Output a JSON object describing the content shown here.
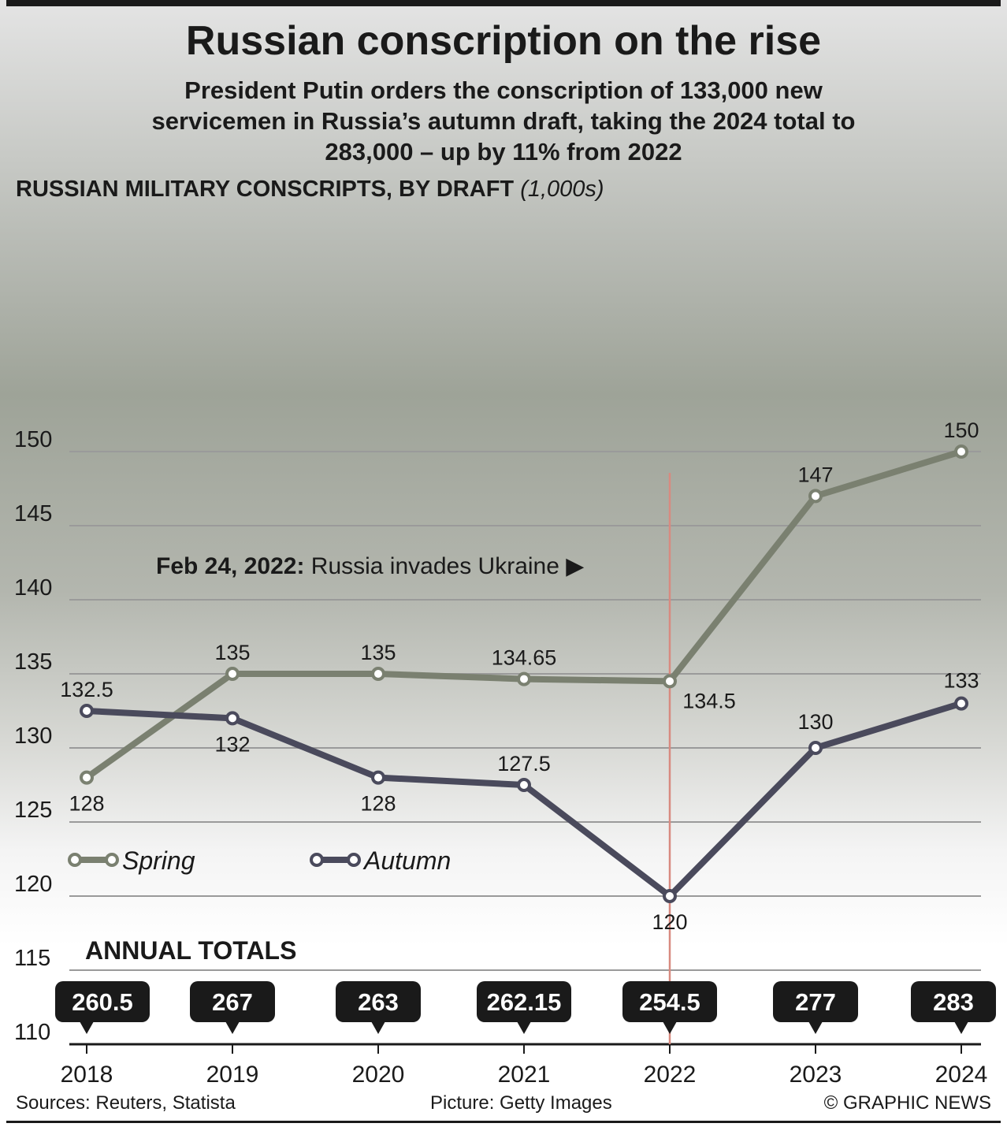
{
  "title": "Russian conscription on the rise",
  "subtitle": "President Putin orders the conscription of 133,000 new servicemen in Russia’s autumn draft, taking the 2024 total to 283,000 – up by 11% from 2022",
  "footer": {
    "sources": "Sources: Reuters, Statista",
    "picture": "Picture: Getty Images",
    "credit": "© GRAPHIC NEWS"
  },
  "chart_data": {
    "type": "line",
    "title": "RUSSIAN MILITARY CONSCRIPTS, BY DRAFT",
    "unit": "(1,000s)",
    "x": [
      "2018",
      "2019",
      "2020",
      "2021",
      "2022",
      "2023",
      "2024"
    ],
    "series": [
      {
        "name": "Spring",
        "values": [
          128,
          135,
          135,
          134.65,
          134.5,
          147,
          150
        ],
        "labels": [
          "128",
          "135",
          "135",
          "134.65",
          "134.5",
          "147",
          "150"
        ],
        "color": "#7a8070"
      },
      {
        "name": "Autumn",
        "values": [
          132.5,
          132,
          128,
          127.5,
          120,
          130,
          133
        ],
        "labels": [
          "132.5",
          "132",
          "128",
          "127.5",
          "120",
          "130",
          "133"
        ],
        "color": "#4a4a5c"
      }
    ],
    "yticks": [
      110,
      115,
      120,
      125,
      130,
      135,
      140,
      145,
      150
    ],
    "ylim": [
      110,
      150
    ],
    "grid": true,
    "legend": "bottom-left",
    "annotation": {
      "date": "Feb 24, 2022:",
      "text": "Russia invades Ukraine ▶",
      "x": "2022",
      "color": "#d88a80"
    },
    "totals_title": "ANNUAL TOTALS",
    "totals": [
      "260.5",
      "267",
      "263",
      "262.15",
      "254.5",
      "277",
      "283"
    ]
  }
}
